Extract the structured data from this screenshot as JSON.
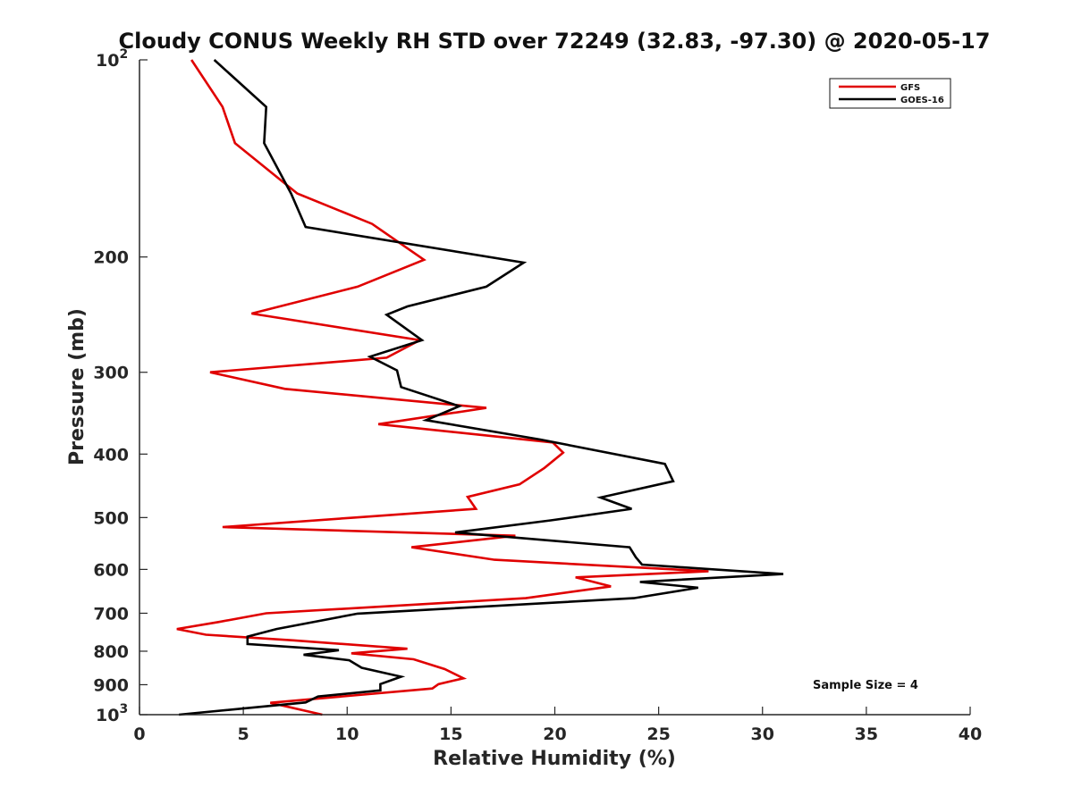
{
  "chart_data": {
    "type": "line",
    "title": "Cloudy CONUS Weekly RH STD over 72249 (32.83, -97.30) @ 2020-05-17",
    "xlabel": "Relative Humidity (%)",
    "ylabel": "Pressure (mb)",
    "xlim": [
      0,
      40
    ],
    "ylim": [
      100,
      1000
    ],
    "yscale": "log",
    "y_reversed": true,
    "x_ticks": [
      "0",
      "5",
      "10",
      "15",
      "20",
      "25",
      "30",
      "35",
      "40"
    ],
    "y_ticks": [
      {
        "value": 100,
        "label": "10",
        "sup": "2"
      },
      {
        "value": 200,
        "label": "200",
        "sup": ""
      },
      {
        "value": 300,
        "label": "300",
        "sup": ""
      },
      {
        "value": 400,
        "label": "400",
        "sup": ""
      },
      {
        "value": 500,
        "label": "500",
        "sup": ""
      },
      {
        "value": 600,
        "label": "600",
        "sup": ""
      },
      {
        "value": 700,
        "label": "700",
        "sup": ""
      },
      {
        "value": 800,
        "label": "800",
        "sup": ""
      },
      {
        "value": 900,
        "label": "900",
        "sup": ""
      },
      {
        "value": 1000,
        "label": "10",
        "sup": "3"
      }
    ],
    "grid": false,
    "legend_position": "top-right",
    "series": [
      {
        "name": "GFS",
        "color": "#e00000",
        "points": [
          [
            2.5,
            100
          ],
          [
            4.0,
            118
          ],
          [
            4.6,
            134
          ],
          [
            7.6,
            160
          ],
          [
            11.2,
            178
          ],
          [
            13.7,
            202
          ],
          [
            10.5,
            222
          ],
          [
            5.4,
            244
          ],
          [
            13.5,
            268
          ],
          [
            11.9,
            285
          ],
          [
            3.4,
            300
          ],
          [
            7.0,
            318
          ],
          [
            16.7,
            340
          ],
          [
            11.5,
            360
          ],
          [
            19.9,
            384
          ],
          [
            20.4,
            398
          ],
          [
            19.5,
            420
          ],
          [
            18.3,
            445
          ],
          [
            15.8,
            465
          ],
          [
            16.2,
            485
          ],
          [
            10.4,
            500
          ],
          [
            4.0,
            517
          ],
          [
            18.1,
            533
          ],
          [
            13.1,
            555
          ],
          [
            17.1,
            580
          ],
          [
            27.4,
            604
          ],
          [
            21.0,
            617
          ],
          [
            22.7,
            637
          ],
          [
            18.6,
            664
          ],
          [
            6.1,
            700
          ],
          [
            3.8,
            722
          ],
          [
            1.8,
            740
          ],
          [
            3.2,
            755
          ],
          [
            7.4,
            770
          ],
          [
            12.9,
            793
          ],
          [
            10.2,
            806
          ],
          [
            13.2,
            823
          ],
          [
            14.7,
            852
          ],
          [
            15.6,
            880
          ],
          [
            14.4,
            898
          ],
          [
            14.1,
            912
          ],
          [
            6.3,
            959
          ],
          [
            8.8,
            1000
          ]
        ]
      },
      {
        "name": "GOES-16",
        "color": "#000000",
        "points": [
          [
            3.6,
            100
          ],
          [
            6.1,
            118
          ],
          [
            6.0,
            134
          ],
          [
            7.3,
            160
          ],
          [
            8.0,
            180
          ],
          [
            18.5,
            204
          ],
          [
            16.7,
            222
          ],
          [
            12.9,
            238
          ],
          [
            11.9,
            245
          ],
          [
            13.6,
            268
          ],
          [
            11.1,
            284
          ],
          [
            12.4,
            298
          ],
          [
            12.6,
            316
          ],
          [
            15.4,
            338
          ],
          [
            13.8,
            355
          ],
          [
            19.3,
            380
          ],
          [
            25.3,
            414
          ],
          [
            25.7,
            440
          ],
          [
            22.2,
            466
          ],
          [
            23.7,
            485
          ],
          [
            19.8,
            505
          ],
          [
            15.2,
            527
          ],
          [
            23.6,
            555
          ],
          [
            23.9,
            575
          ],
          [
            24.2,
            590
          ],
          [
            31.0,
            610
          ],
          [
            24.1,
            627
          ],
          [
            26.9,
            640
          ],
          [
            23.8,
            664
          ],
          [
            10.5,
            701
          ],
          [
            6.6,
            740
          ],
          [
            5.2,
            760
          ],
          [
            5.2,
            780
          ],
          [
            9.6,
            797
          ],
          [
            7.9,
            810
          ],
          [
            10.1,
            826
          ],
          [
            10.7,
            848
          ],
          [
            12.6,
            875
          ],
          [
            11.6,
            898
          ],
          [
            11.6,
            918
          ],
          [
            8.6,
            938
          ],
          [
            8.0,
            958
          ],
          [
            1.9,
            1000
          ]
        ]
      }
    ],
    "annotations": [
      {
        "text": "Sample Size = 4"
      }
    ]
  }
}
